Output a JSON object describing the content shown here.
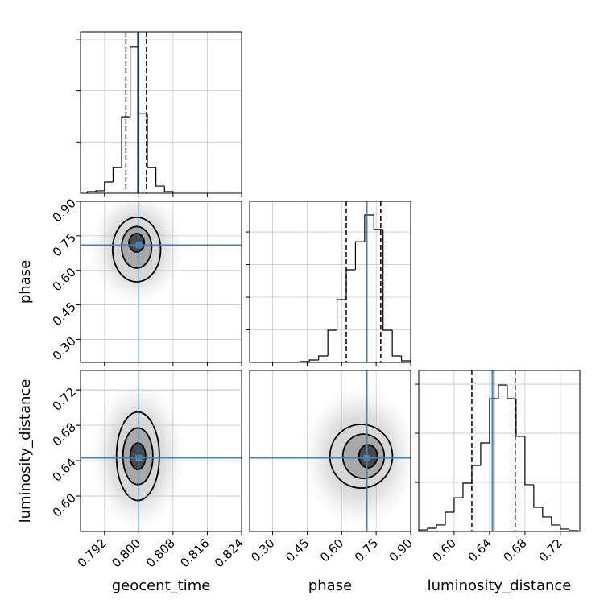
{
  "chart_data": {
    "type": "corner",
    "truth_color": "#4682b4",
    "grid": true,
    "parameters": [
      {
        "name": "geocent_time",
        "range": [
          0.7864,
          0.824
        ],
        "ticks": [
          0.792,
          {
            "value": 0.8,
            "label": "0.800"
          },
          0.808,
          0.816,
          0.824
        ],
        "truth": 0.8,
        "quantiles": [
          0.797,
          0.7998,
          0.8018
        ],
        "hist": {
          "bins": [
            0.788,
            0.79,
            0.792,
            0.794,
            0.796,
            0.798,
            0.8,
            0.802,
            0.804,
            0.806,
            0.808
          ],
          "counts": [
            16,
            24,
            110,
            250,
            745,
            1430,
            775,
            250,
            70,
            16
          ],
          "ylim": [
            0,
            1570
          ],
          "yticks": [
            500,
            1000,
            1500
          ]
        }
      },
      {
        "name": "phase",
        "range": [
          0.2,
          0.9
        ],
        "ticks": [
          {
            "value": 0.3,
            "label": "0.30"
          },
          0.45,
          {
            "value": 0.6,
            "label": "0.60"
          },
          0.75,
          {
            "value": 0.9,
            "label": "0.90"
          }
        ],
        "truth": 0.71,
        "quantiles": [
          0.62,
          0.71,
          0.77
        ],
        "hist": {
          "bins": [
            0.42,
            0.46,
            0.5,
            0.54,
            0.58,
            0.62,
            0.66,
            0.7,
            0.74,
            0.78,
            0.82,
            0.86,
            0.9
          ],
          "counts": [
            12,
            37,
            99,
            494,
            963,
            1420,
            1850,
            2260,
            2040,
            494,
            99,
            25
          ],
          "ylim": [
            0,
            2470
          ],
          "yticks": [
            500,
            1000,
            1500,
            2000
          ]
        }
      },
      {
        "name": "luminosity_distance",
        "range": [
          0.56,
          0.742
        ],
        "ticks": [
          {
            "value": 0.6,
            "label": "0.60"
          },
          0.64,
          0.68,
          0.72
        ],
        "truth": 0.643,
        "quantiles": [
          0.62,
          0.645,
          0.669
        ],
        "hist": {
          "bins": [
            0.56,
            0.57,
            0.58,
            0.59,
            0.6,
            0.61,
            0.62,
            0.63,
            0.64,
            0.65,
            0.66,
            0.67,
            0.68,
            0.69,
            0.7,
            0.71,
            0.72,
            0.73,
            0.74
          ],
          "counts": [
            16,
            33,
            66,
            197,
            344,
            492,
            672,
            902,
            1353,
            1492,
            1353,
            968,
            476,
            246,
            148,
            66,
            25,
            8
          ],
          "ylim": [
            0,
            1640
          ],
          "yticks": [
            500,
            1000,
            1500
          ]
        }
      }
    ],
    "pairs": [
      {
        "cloud": {
          "cx": 0.7995,
          "cy": 0.7,
          "rx": 0.011,
          "ry": 0.25
        },
        "contours": [
          {
            "cx": 0.7995,
            "cy": 0.69,
            "rx": 0.0056,
            "ry": 0.14
          },
          {
            "cx": 0.7995,
            "cy": 0.7,
            "rx": 0.0035,
            "ry": 0.09
          },
          {
            "cx": 0.7995,
            "cy": 0.72,
            "rx": 0.0018,
            "ry": 0.04
          }
        ]
      },
      {
        "cloud": {
          "cx": 0.7998,
          "cy": 0.645,
          "rx": 0.011,
          "ry": 0.085
        },
        "contours": [
          {
            "cx": 0.7998,
            "cy": 0.645,
            "rx": 0.005,
            "ry": 0.05
          },
          {
            "cx": 0.7998,
            "cy": 0.645,
            "rx": 0.0035,
            "ry": 0.032
          },
          {
            "cx": 0.7998,
            "cy": 0.645,
            "rx": 0.0018,
            "ry": 0.015
          }
        ]
      },
      {
        "cloud": {
          "cx": 0.68,
          "cy": 0.645,
          "rx": 0.25,
          "ry": 0.08
        },
        "contours": [
          {
            "cx": 0.685,
            "cy": 0.645,
            "rx": 0.136,
            "ry": 0.036
          },
          {
            "cx": 0.695,
            "cy": 0.645,
            "rx": 0.09,
            "ry": 0.025
          },
          {
            "cx": 0.715,
            "cy": 0.645,
            "rx": 0.04,
            "ry": 0.013
          }
        ]
      }
    ]
  }
}
